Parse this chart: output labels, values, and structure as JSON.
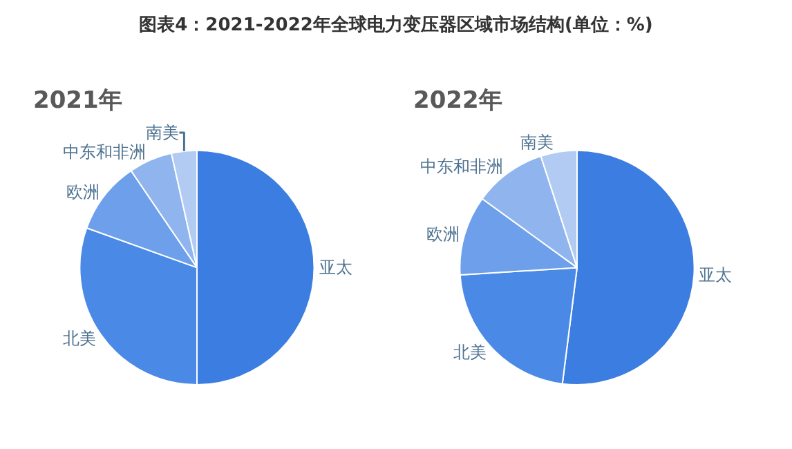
{
  "chart_data": [
    {
      "type": "pie",
      "title": "图表4：2021-2022年全球电力变压器区域市场结构(单位：%)",
      "subtitle": "2021年",
      "categories": [
        "亚太",
        "北美",
        "欧洲",
        "中东和非洲",
        "南美"
      ],
      "values": [
        50,
        30.5,
        10,
        6,
        3.5
      ],
      "colors": [
        "#3b7de0",
        "#4a8ae6",
        "#6d9fea",
        "#8fb4ee",
        "#b2cbf3"
      ],
      "legend": false
    },
    {
      "type": "pie",
      "subtitle": "2022年",
      "categories": [
        "亚太",
        "北美",
        "欧洲",
        "中东和非洲",
        "南美"
      ],
      "values": [
        52,
        22,
        11,
        10,
        5
      ],
      "colors": [
        "#3b7de0",
        "#4a8ae6",
        "#6d9fea",
        "#8fb4ee",
        "#b2cbf3"
      ],
      "legend": false
    }
  ]
}
